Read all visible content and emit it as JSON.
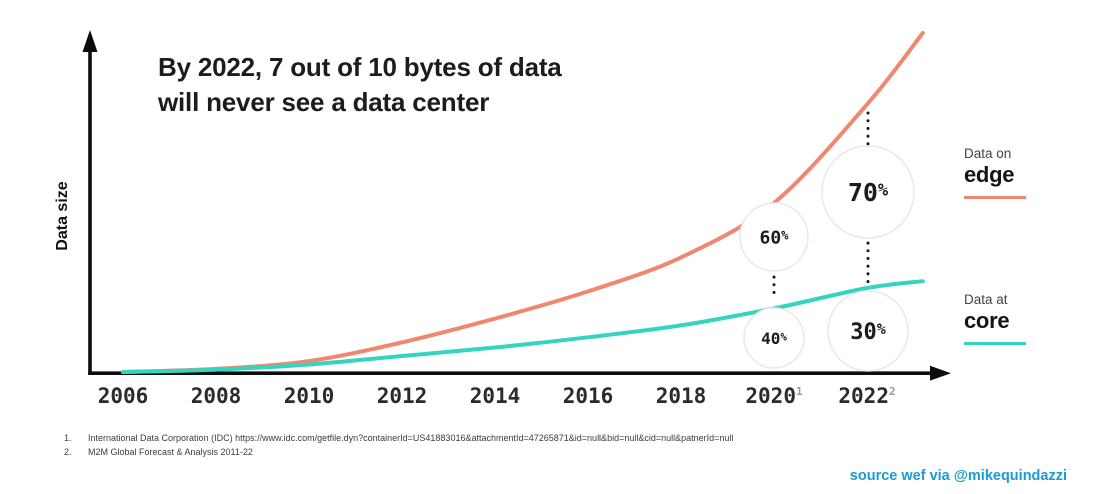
{
  "title": {
    "line1": "By 2022, 7 out of 10 bytes of data",
    "line2": "will never see a data center"
  },
  "axes": {
    "y_label": "Data size"
  },
  "legend": {
    "edge": {
      "prefix": "Data on",
      "name": "edge",
      "color": "#F0876F"
    },
    "core": {
      "prefix": "Data at",
      "name": "core",
      "color": "#35D4BE"
    }
  },
  "footnotes": [
    {
      "num": "1.",
      "text": "International Data Corporation (IDC) https://www.idc.com/getfile.dyn?containerId=US41883016&attachmentId=47265871&id=null&bid=null&cid=null&patnerId=null"
    },
    {
      "num": "2.",
      "text": "M2M Global Forecast & Analysis 2011-22"
    }
  ],
  "source_credit": "source wef via @mikequindazzi",
  "chart_data": {
    "type": "line",
    "title": "By 2022, 7 out of 10 bytes of data will never see a data center",
    "xlabel": "",
    "ylabel": "Data size",
    "grid": false,
    "legend_position": "right",
    "ylim": [
      0,
      100
    ],
    "x_ticks": [
      {
        "label": "2006",
        "sup": ""
      },
      {
        "label": "2008",
        "sup": ""
      },
      {
        "label": "2010",
        "sup": ""
      },
      {
        "label": "2012",
        "sup": ""
      },
      {
        "label": "2014",
        "sup": ""
      },
      {
        "label": "2016",
        "sup": ""
      },
      {
        "label": "2018",
        "sup": ""
      },
      {
        "label": "2020",
        "sup": "1"
      },
      {
        "label": "2022",
        "sup": "2"
      }
    ],
    "series": [
      {
        "id": "edge",
        "name": "Data on edge",
        "color": "#F0876F",
        "x": [
          2006,
          2008,
          2010,
          2012,
          2014,
          2016,
          2018,
          2020,
          2022,
          2023.2
        ],
        "values": [
          0.3,
          1.2,
          3.5,
          9,
          16,
          24,
          34,
          50,
          79,
          100
        ]
      },
      {
        "id": "core",
        "name": "Data at core",
        "color": "#35D4BE",
        "x": [
          2006,
          2008,
          2010,
          2012,
          2014,
          2016,
          2018,
          2020,
          2022,
          2023.2
        ],
        "values": [
          0.3,
          1,
          2.5,
          5,
          7.5,
          10.5,
          14,
          19,
          25,
          27
        ]
      }
    ],
    "annotations": [
      {
        "id": "edge-2020",
        "series": "Data on edge",
        "year": 2020,
        "label": "60%"
      },
      {
        "id": "edge-2022",
        "series": "Data on edge",
        "year": 2022,
        "label": "70%"
      },
      {
        "id": "core-2020",
        "series": "Data at core",
        "year": 2020,
        "label": "40%"
      },
      {
        "id": "core-2022",
        "series": "Data at core",
        "year": 2022,
        "label": "30%"
      }
    ]
  }
}
